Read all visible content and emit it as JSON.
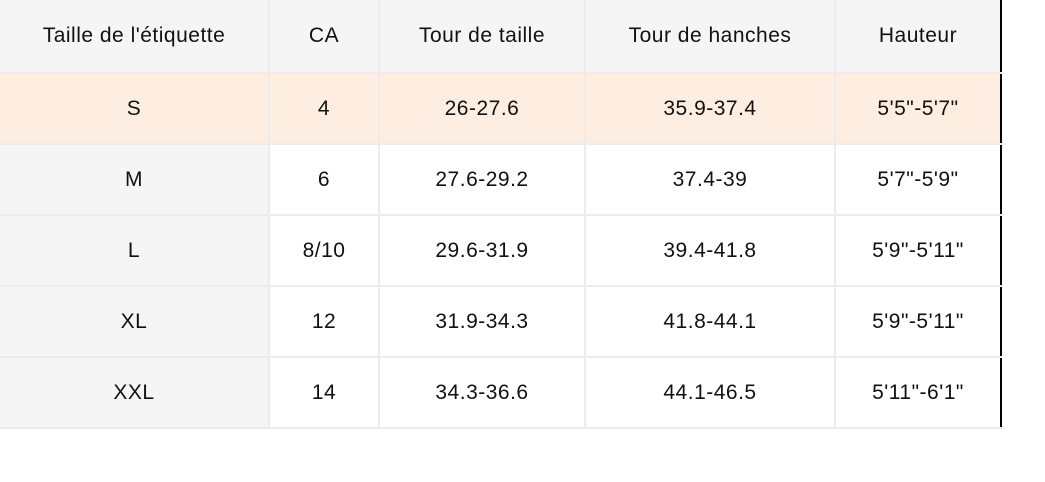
{
  "headers": [
    "Taille de l'étiquette",
    "CA",
    "Tour de taille",
    "Tour de hanches",
    "Hauteur"
  ],
  "rows": [
    [
      "S",
      "4",
      "26-27.6",
      "35.9-37.4",
      "5'5\"-5'7\""
    ],
    [
      "M",
      "6",
      "27.6-29.2",
      "37.4-39",
      "5'7\"-5'9\""
    ],
    [
      "L",
      "8/10",
      "29.6-31.9",
      "39.4-41.8",
      "5'9\"-5'11\""
    ],
    [
      "XL",
      "12",
      "31.9-34.3",
      "41.8-44.1",
      "5'9\"-5'11\""
    ],
    [
      "XXL",
      "14",
      "34.3-36.6",
      "44.1-46.5",
      "5'11\"-6'1\""
    ]
  ],
  "highlighted_row": 0,
  "colors": {
    "header_bg": "#f5f5f5",
    "highlight_bg": "#fdeee1",
    "border": "#ececec"
  }
}
